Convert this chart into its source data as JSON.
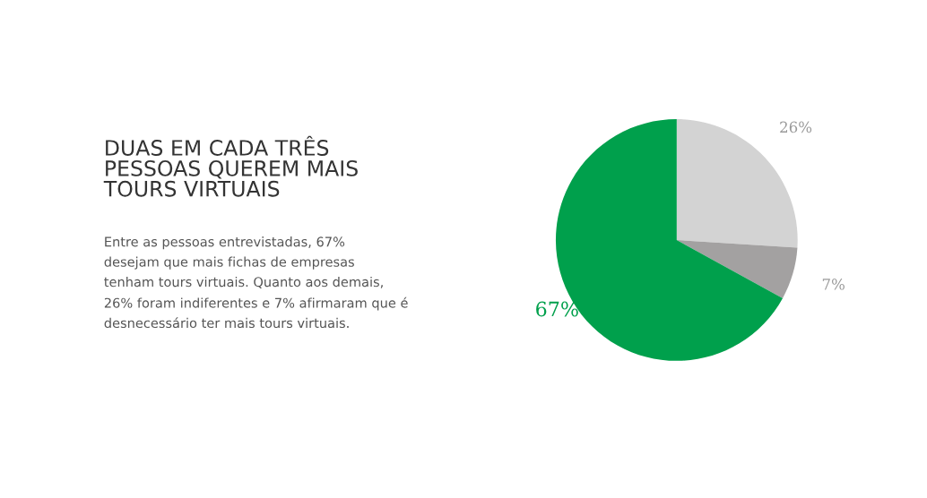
{
  "chart_data": {
    "type": "pie",
    "title": "DUAS EM CADA TRÊS\nPESSOAS QUEREM MAIS\nTOURS VIRTUAIS",
    "subtitle": "Entre as pessoas entrevistadas, 67%\ndesejam que mais fichas de empresas\ntenham tours virtuais. Quanto aos demais,\n26% foram indiferentes e 7% afirmaram que é\ndesnecessário ter mais tours virtuais.",
    "categories": [
      null,
      null,
      null
    ],
    "values": [
      26,
      7,
      67
    ],
    "colors": [
      "#d3d3d3",
      "#a3a1a1",
      "#00a04c"
    ],
    "value_labels": [
      "26%",
      "7%",
      "67%"
    ],
    "legend": false
  }
}
